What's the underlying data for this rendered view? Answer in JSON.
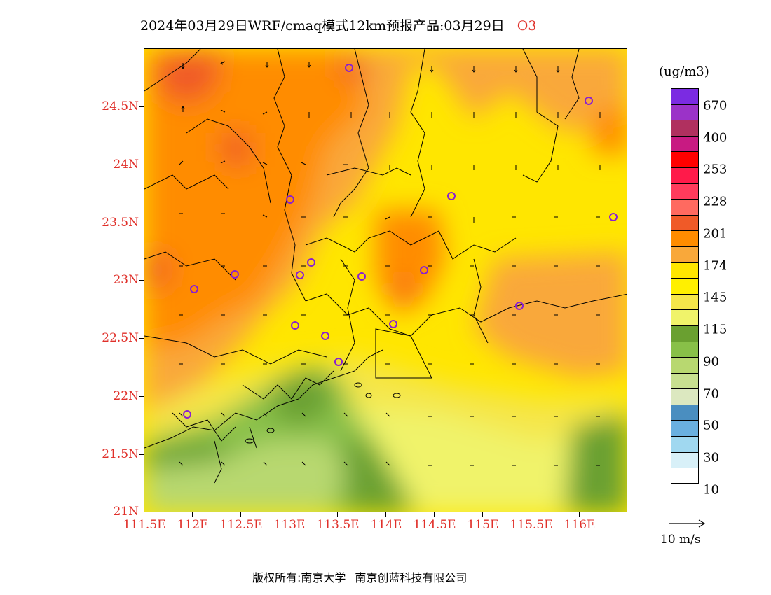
{
  "title": {
    "main": "2024年03月29日WRF/cmaq模式12km预报产品:03月29日",
    "species": "O3"
  },
  "map": {
    "lat_labels": [
      "24.5N",
      "24N",
      "23.5N",
      "23N",
      "22.5N",
      "22N",
      "21.5N",
      "21N"
    ],
    "lon_labels": [
      "111.5E",
      "112E",
      "112.5E",
      "113E",
      "113.5E",
      "114E",
      "114.5E",
      "115E",
      "115.5E",
      "116E"
    ]
  },
  "legend": {
    "unit": "(ug/m3)",
    "colors": [
      "#7b2be2",
      "#9b32c8",
      "#b0305f",
      "#c81a82",
      "#ff0000",
      "#ff1a4a",
      "#ff3b5c",
      "#ff6a60",
      "#f05a28",
      "#ff8c00",
      "#f9a83a",
      "#ffe600",
      "#fff000",
      "#f5e64a",
      "#f0f36a",
      "#6aa030",
      "#88c048",
      "#b8d870",
      "#c8e090",
      "#dce8c0",
      "#4a8ec0",
      "#6ab0e0",
      "#a0d8f0",
      "#d8f0f8",
      "#ffffff"
    ],
    "labels": [
      "670",
      "400",
      "253",
      "228",
      "201",
      "174",
      "145",
      "115",
      "90",
      "70",
      "50",
      "30",
      "10"
    ]
  },
  "vector": {
    "label": "10 m/s"
  },
  "footer": {
    "copyright_left": "版权所有:南京大学",
    "copyright_right": "南京创蓝科技有限公司"
  }
}
